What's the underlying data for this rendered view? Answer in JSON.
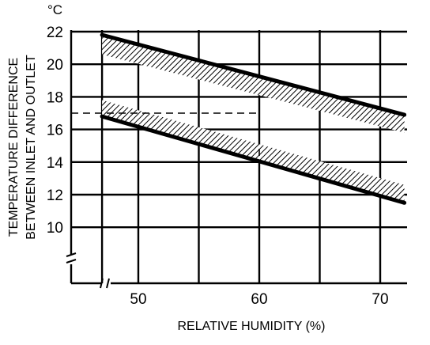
{
  "chart_data": {
    "type": "line",
    "title": "",
    "xlabel": "RELATIVE HUMIDITY (%)",
    "ylabel_line1": "TEMPERATURE DIFFERENCE",
    "ylabel_line2": "BETWEEN INLET AND OUTLET",
    "y_unit": "°C",
    "xlim": [
      45,
      72
    ],
    "ylim": [
      8,
      22
    ],
    "axis_break": {
      "x": true,
      "y": true
    },
    "grid": true,
    "x_ticks": [
      {
        "value": 50,
        "label": "50"
      },
      {
        "value": 60,
        "label": "60"
      },
      {
        "value": 70,
        "label": "70"
      }
    ],
    "y_ticks": [
      {
        "value": 22,
        "label": "22"
      },
      {
        "value": 20,
        "label": "20"
      },
      {
        "value": 18,
        "label": "18"
      },
      {
        "value": 16,
        "label": "16"
      },
      {
        "value": 14,
        "label": "14"
      },
      {
        "value": 12,
        "label": "12"
      },
      {
        "value": 10,
        "label": "10"
      }
    ],
    "x_gridlines": [
      47,
      50,
      55,
      60,
      65,
      70
    ],
    "y_gridlines": [
      22,
      20,
      18,
      16,
      14,
      12,
      10
    ],
    "series": [
      {
        "x": [
          47,
          72
        ],
        "y": [
          21.8,
          16.9
        ]
      },
      {
        "x": [
          47,
          72
        ],
        "y": [
          16.8,
          11.5
        ]
      }
    ],
    "bands": [
      {
        "x": [
          47,
          72
        ],
        "upper": [
          21.8,
          16.9
        ],
        "lower": [
          20.6,
          15.8
        ]
      },
      {
        "x": [
          47,
          72
        ],
        "upper": [
          17.8,
          12.6
        ],
        "lower": [
          16.8,
          11.5
        ]
      }
    ],
    "reference": {
      "x": 60,
      "y": 17
    },
    "colors": {
      "line": "#000000",
      "grid": "#000000",
      "background": "#ffffff"
    }
  }
}
